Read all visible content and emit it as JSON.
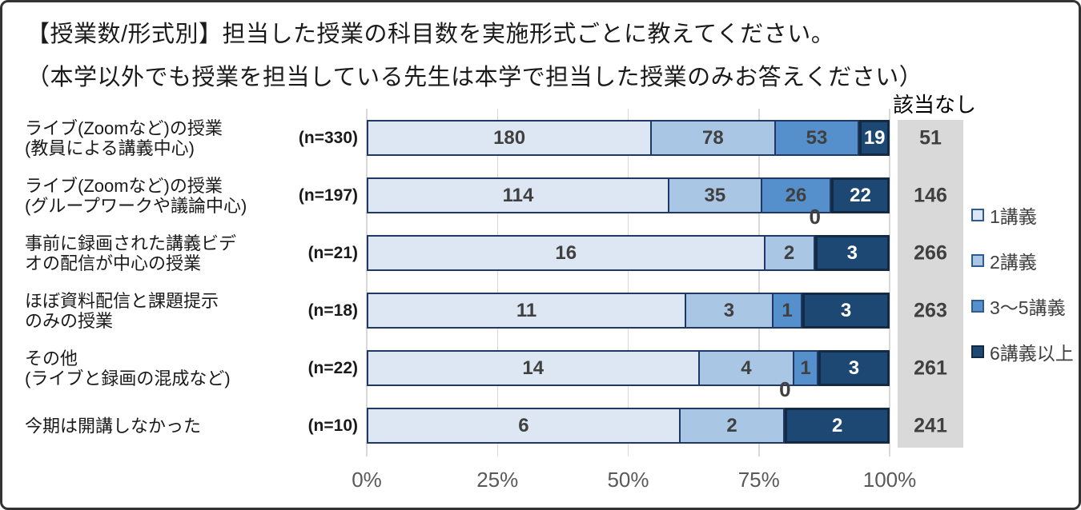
{
  "title_line1": "【授業数/形式別】担当した授業の科目数を実施形式ごとに教えてください。",
  "title_line2": "（本学以外でも授業を担当している先生は本学で担当した授業のみお答えください）",
  "chart_data": {
    "type": "bar",
    "variant": "horizontal-100pct-stacked",
    "title": "【授業数/形式別】担当した授業の科目数を実施形式ごとに教えてください。",
    "subtitle": "（本学以外でも授業を担当している先生は本学で担当した授業のみお答えください）",
    "series_names": [
      "1講義",
      "2講義",
      "3〜5講義",
      "6講義以上"
    ],
    "segment_colors": [
      "#dde7f3",
      "#a9c6e5",
      "#5590cd",
      "#1d4873"
    ],
    "bar_border_color": "#1f3864",
    "dark_segment_border_color": "#122a44",
    "grid_color": "#d9d9d9",
    "na_column_bg": "#d9d9d9",
    "value_label_color": "#404040",
    "value_label_color_on_dark": "#ffffff",
    "axis_text_color": "#595959",
    "na_header": "該当なし",
    "legend_position": "right",
    "x_axis": {
      "ticks": [
        "0%",
        "25%",
        "50%",
        "75%",
        "100%"
      ],
      "range": [
        0,
        100
      ],
      "grid": true
    },
    "rows": [
      {
        "label_lines": [
          "ライブ(Zoomなど)の授業",
          "(教員による講義中心)"
        ],
        "n_label": "(n=330)",
        "n": 330,
        "values": [
          180,
          78,
          53,
          19
        ],
        "not_applicable": 51
      },
      {
        "label_lines": [
          "ライブ(Zoomなど)の授業",
          "(グループワークや議論中心)"
        ],
        "n_label": "(n=197)",
        "n": 197,
        "values": [
          114,
          35,
          26,
          22
        ],
        "not_applicable": 146
      },
      {
        "label_lines": [
          "事前に録画された講義ビデ",
          "オの配信が中心の授業"
        ],
        "n_label": "(n=21)",
        "n": 21,
        "values": [
          16,
          2,
          0,
          3
        ],
        "not_applicable": 266
      },
      {
        "label_lines": [
          "ほぼ資料配信と課題提示",
          "のみの授業"
        ],
        "n_label": "(n=18)",
        "n": 18,
        "values": [
          11,
          3,
          1,
          3
        ],
        "not_applicable": 263
      },
      {
        "label_lines": [
          "その他",
          "(ライブと録画の混成など)"
        ],
        "n_label": "(n=22)",
        "n": 22,
        "values": [
          14,
          4,
          1,
          3
        ],
        "not_applicable": 261
      },
      {
        "label_lines": [
          "今期は開講しなかった"
        ],
        "n_label": "(n=10)",
        "n": 10,
        "values": [
          6,
          2,
          0,
          2
        ],
        "not_applicable": 241
      }
    ]
  }
}
